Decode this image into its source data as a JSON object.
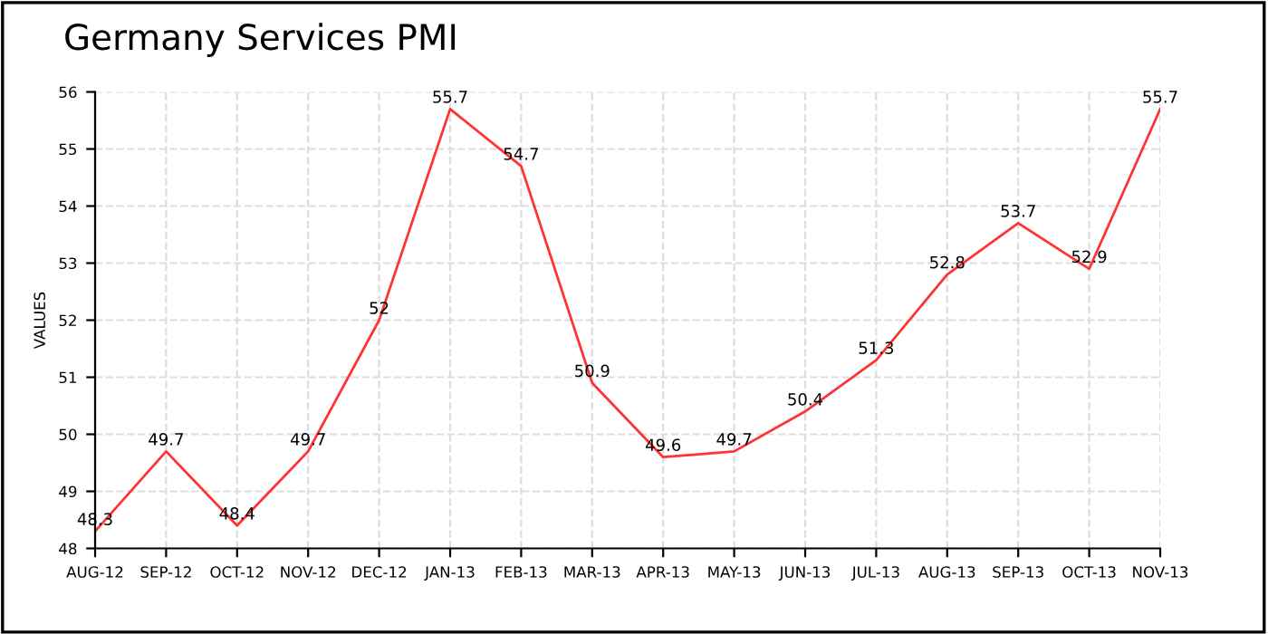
{
  "chart_data": {
    "type": "line",
    "title": "Germany Services PMI",
    "ylabel": "VALUES",
    "categories": [
      "AUG-12",
      "SEP-12",
      "OCT-12",
      "NOV-12",
      "DEC-12",
      "JAN-13",
      "FEB-13",
      "MAR-13",
      "APR-13",
      "MAY-13",
      "JUN-13",
      "JUL-13",
      "AUG-13",
      "SEP-13",
      "OCT-13",
      "NOV-13"
    ],
    "series": [
      {
        "color": "#ff3333",
        "values": [
          48.3,
          49.7,
          48.4,
          49.7,
          52,
          55.7,
          54.7,
          50.9,
          49.6,
          49.7,
          50.4,
          51.3,
          52.8,
          53.7,
          52.9,
          55.7
        ]
      }
    ],
    "ylim": [
      48,
      56
    ],
    "yticks": [
      48,
      49,
      50,
      51,
      52,
      53,
      54,
      55,
      56
    ],
    "grid": true,
    "data_labels": true,
    "marker": "none",
    "line_style": "solid",
    "legend": false
  }
}
